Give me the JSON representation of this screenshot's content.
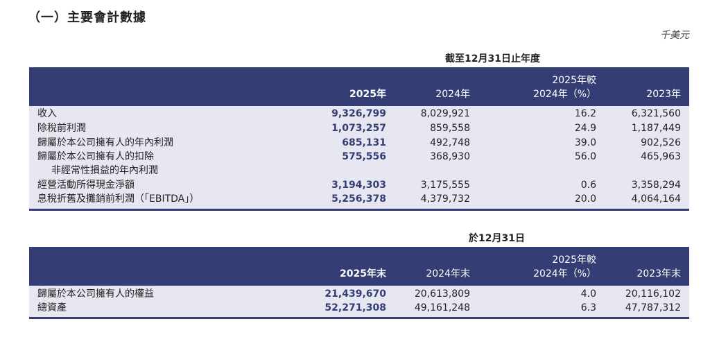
{
  "title": "（一）主要會計數據",
  "unit": "千美元",
  "table1": {
    "period": "截至12月31日止年度",
    "headers": [
      "2025年",
      "2024年",
      "2025年較",
      "2024年（%）",
      "2023年"
    ],
    "rows": [
      {
        "label": "收入",
        "v2025": "9,326,799",
        "v2024": "8,029,921",
        "chg": "16.2",
        "v2023": "6,321,560"
      },
      {
        "label": "除稅前利潤",
        "v2025": "1,073,257",
        "v2024": "859,558",
        "chg": "24.9",
        "v2023": "1,187,449"
      },
      {
        "label": "歸屬於本公司擁有人的年內利潤",
        "v2025": "685,131",
        "v2024": "492,748",
        "chg": "39.0",
        "v2023": "902,526"
      },
      {
        "label": "歸屬於本公司擁有人的扣除",
        "label2": "非經常性損益的年內利潤",
        "v2025": "575,556",
        "v2024": "368,930",
        "chg": "56.0",
        "v2023": "465,963"
      },
      {
        "label": "經營活動所得現金淨額",
        "v2025": "3,194,303",
        "v2024": "3,175,555",
        "chg": "0.6",
        "v2023": "3,358,294"
      },
      {
        "label": "息稅折舊及攤銷前利潤（「EBITDA」）",
        "v2025": "5,256,378",
        "v2024": "4,379,732",
        "chg": "20.0",
        "v2023": "4,064,164"
      }
    ]
  },
  "table2": {
    "period": "於12月31日",
    "headers": [
      "2025年末",
      "2024年末",
      "2025年較",
      "2024年（%）",
      "2023年末"
    ],
    "rows": [
      {
        "label": "歸屬於本公司擁有人的權益",
        "v2025": "21,439,670",
        "v2024": "20,613,809",
        "chg": "4.0",
        "v2023": "20,116,102"
      },
      {
        "label": "總資產",
        "v2025": "52,271,308",
        "v2024": "49,161,248",
        "chg": "6.3",
        "v2023": "47,787,312"
      }
    ]
  }
}
